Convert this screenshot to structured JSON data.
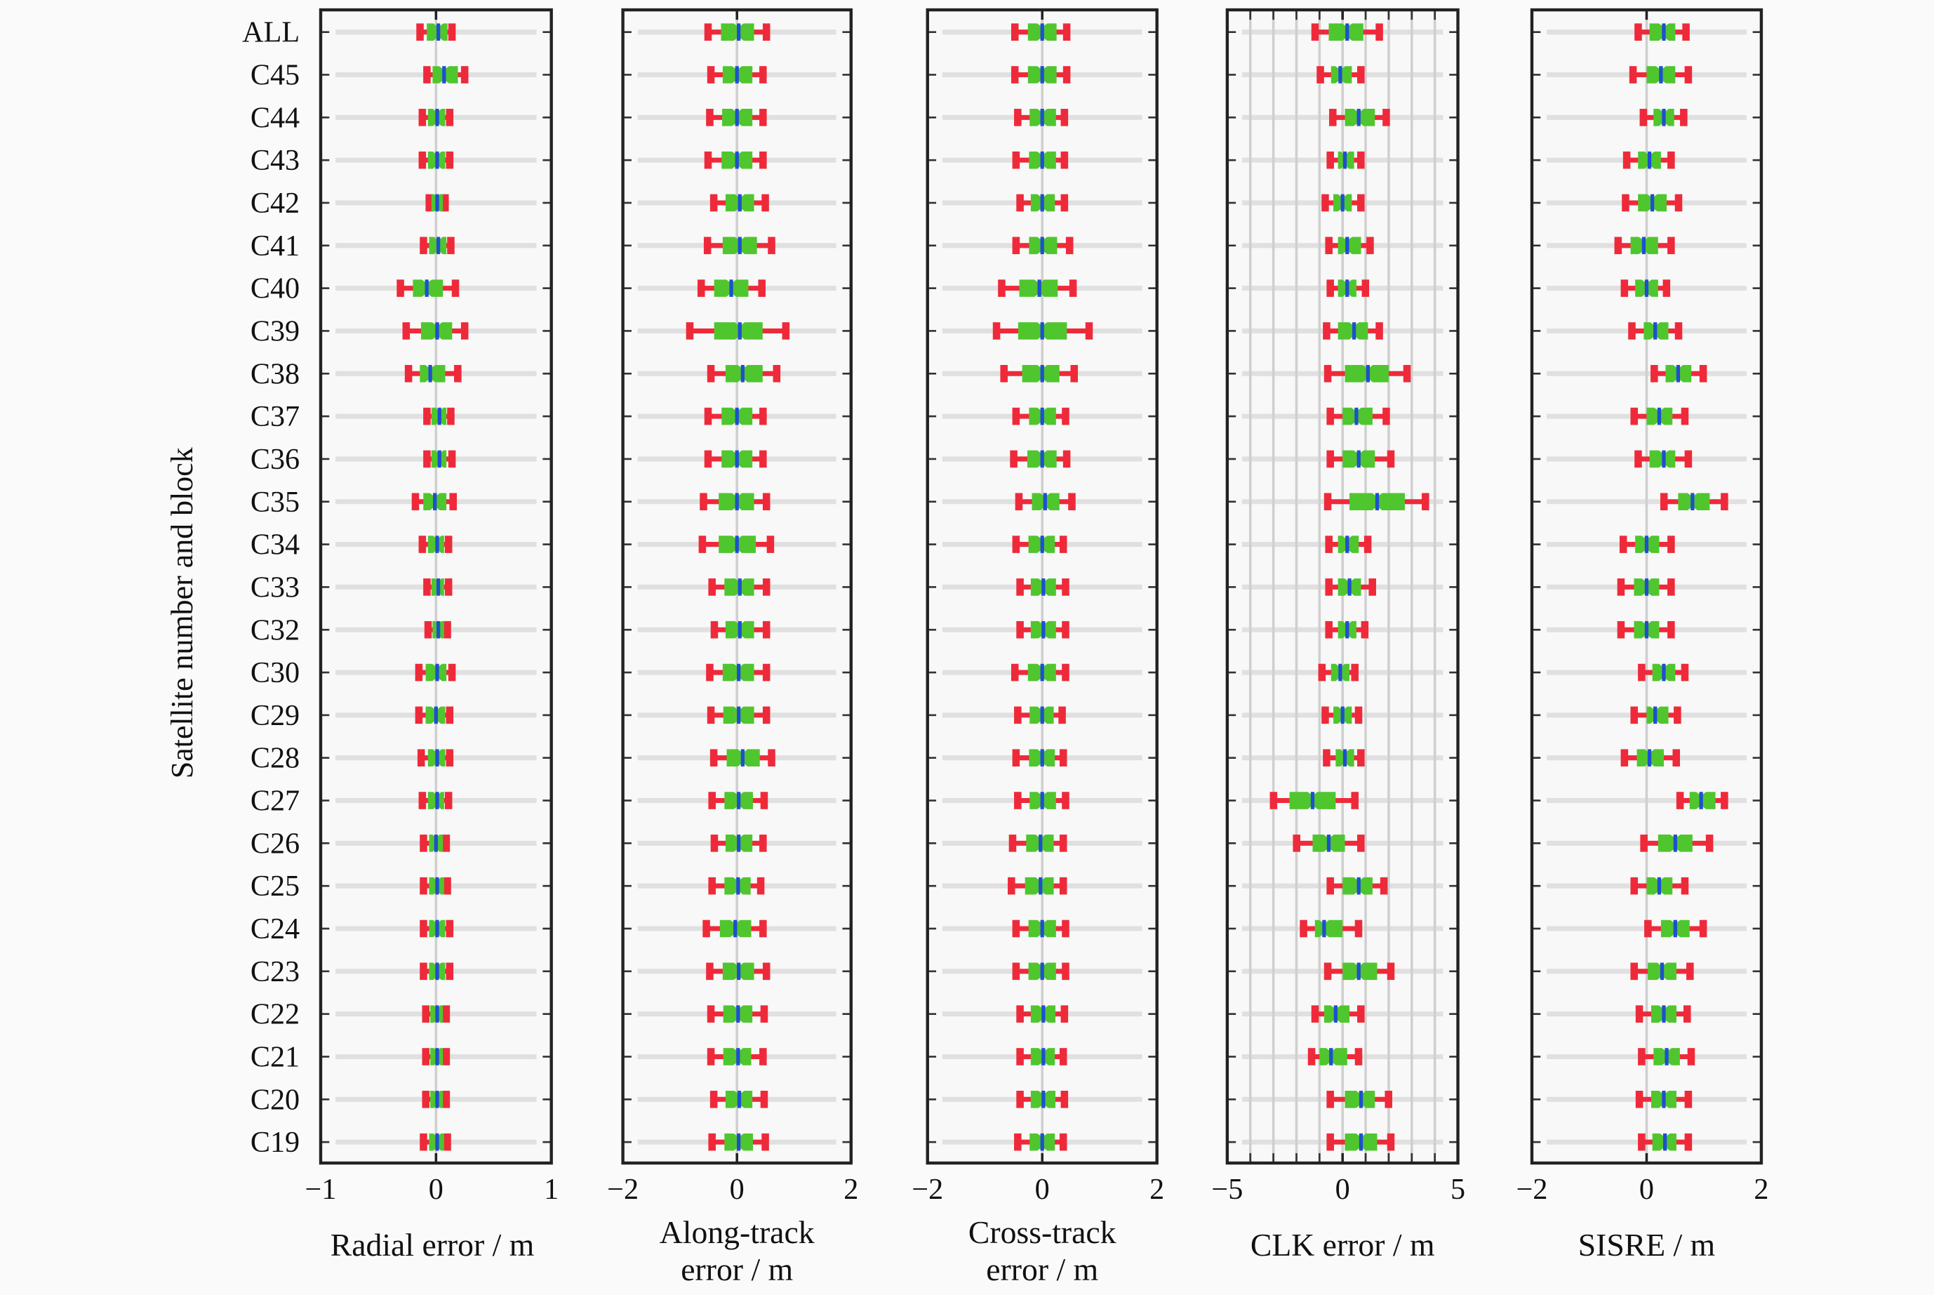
{
  "chart_data": {
    "type": "boxplot",
    "ylabel": "Satellite number and block",
    "categories": [
      "ALL",
      "C45",
      "C44",
      "C43",
      "C42",
      "C41",
      "C40",
      "C39",
      "C38",
      "C37",
      "C36",
      "C35",
      "C34",
      "C33",
      "C32",
      "C30",
      "C29",
      "C28",
      "C27",
      "C26",
      "C25",
      "C24",
      "C23",
      "C22",
      "C21",
      "C20",
      "C19"
    ],
    "value_order": [
      "whisker_min",
      "q1",
      "median",
      "q3",
      "whisker_max"
    ],
    "colors": {
      "whisker": "#ee2a3a",
      "box": "#4fc62e",
      "median": "#1f4fd0",
      "grid": "#d9d9d9"
    },
    "panels": [
      {
        "xlabel_lines": [
          "Radial error / m"
        ],
        "xlim": [
          -1,
          1
        ],
        "ticks": [
          -1,
          0,
          1
        ],
        "tick_labels": [
          "−1",
          "0",
          "1"
        ],
        "vgrid": [
          0
        ],
        "values": [
          [
            -0.16,
            -0.08,
            0.02,
            0.1,
            0.16
          ],
          [
            -0.1,
            -0.03,
            0.07,
            0.19,
            0.27
          ],
          [
            -0.14,
            -0.07,
            0.01,
            0.08,
            0.14
          ],
          [
            -0.14,
            -0.07,
            0.01,
            0.08,
            0.14
          ],
          [
            -0.08,
            -0.04,
            0.01,
            0.06,
            0.1
          ],
          [
            -0.13,
            -0.06,
            0.02,
            0.09,
            0.15
          ],
          [
            -0.33,
            -0.2,
            -0.08,
            0.06,
            0.19
          ],
          [
            -0.28,
            -0.13,
            0.01,
            0.14,
            0.27
          ],
          [
            -0.26,
            -0.14,
            -0.05,
            0.08,
            0.21
          ],
          [
            -0.1,
            -0.04,
            0.03,
            0.09,
            0.15
          ],
          [
            -0.1,
            -0.04,
            0.03,
            0.09,
            0.16
          ],
          [
            -0.2,
            -0.11,
            -0.01,
            0.09,
            0.17
          ],
          [
            -0.14,
            -0.07,
            0.01,
            0.07,
            0.13
          ],
          [
            -0.1,
            -0.04,
            0.02,
            0.07,
            0.13
          ],
          [
            -0.09,
            -0.03,
            0.02,
            0.07,
            0.12
          ],
          [
            -0.17,
            -0.09,
            0.01,
            0.09,
            0.16
          ],
          [
            -0.17,
            -0.09,
            0.0,
            0.08,
            0.14
          ],
          [
            -0.15,
            -0.07,
            0.01,
            0.08,
            0.14
          ],
          [
            -0.14,
            -0.07,
            0.01,
            0.07,
            0.13
          ],
          [
            -0.13,
            -0.06,
            0.0,
            0.06,
            0.11
          ],
          [
            -0.13,
            -0.06,
            0.01,
            0.07,
            0.12
          ],
          [
            -0.13,
            -0.06,
            0.01,
            0.08,
            0.14
          ],
          [
            -0.13,
            -0.06,
            0.01,
            0.08,
            0.14
          ],
          [
            -0.11,
            -0.05,
            0.01,
            0.06,
            0.11
          ],
          [
            -0.11,
            -0.05,
            0.01,
            0.06,
            0.11
          ],
          [
            -0.11,
            -0.05,
            0.01,
            0.06,
            0.11
          ],
          [
            -0.13,
            -0.06,
            0.01,
            0.07,
            0.12
          ]
        ]
      },
      {
        "xlabel_lines": [
          "Along-track",
          "error / m"
        ],
        "xlim": [
          -2,
          2
        ],
        "ticks": [
          -2,
          0,
          2
        ],
        "tick_labels": [
          "−2",
          "0",
          "2"
        ],
        "vgrid": [
          0
        ],
        "values": [
          [
            -0.55,
            -0.28,
            0.03,
            0.3,
            0.56
          ],
          [
            -0.5,
            -0.25,
            0.0,
            0.27,
            0.5
          ],
          [
            -0.52,
            -0.26,
            0.0,
            0.27,
            0.5
          ],
          [
            -0.55,
            -0.27,
            0.0,
            0.27,
            0.5
          ],
          [
            -0.45,
            -0.2,
            0.05,
            0.3,
            0.54
          ],
          [
            -0.56,
            -0.25,
            0.05,
            0.35,
            0.65
          ],
          [
            -0.67,
            -0.4,
            -0.1,
            0.2,
            0.48
          ],
          [
            -0.87,
            -0.4,
            0.05,
            0.45,
            0.9
          ],
          [
            -0.5,
            -0.2,
            0.1,
            0.45,
            0.74
          ],
          [
            -0.55,
            -0.27,
            0.0,
            0.27,
            0.5
          ],
          [
            -0.55,
            -0.27,
            0.0,
            0.27,
            0.5
          ],
          [
            -0.63,
            -0.32,
            0.0,
            0.3,
            0.56
          ],
          [
            -0.65,
            -0.32,
            0.0,
            0.33,
            0.63
          ],
          [
            -0.48,
            -0.22,
            0.05,
            0.3,
            0.56
          ],
          [
            -0.44,
            -0.2,
            0.05,
            0.3,
            0.56
          ],
          [
            -0.52,
            -0.25,
            0.03,
            0.3,
            0.56
          ],
          [
            -0.5,
            -0.24,
            0.03,
            0.3,
            0.56
          ],
          [
            -0.45,
            -0.18,
            0.1,
            0.4,
            0.65
          ],
          [
            -0.48,
            -0.22,
            0.03,
            0.28,
            0.52
          ],
          [
            -0.44,
            -0.2,
            0.03,
            0.27,
            0.5
          ],
          [
            -0.48,
            -0.22,
            0.02,
            0.24,
            0.46
          ],
          [
            -0.58,
            -0.3,
            -0.03,
            0.25,
            0.5
          ],
          [
            -0.52,
            -0.25,
            0.03,
            0.3,
            0.56
          ],
          [
            -0.5,
            -0.24,
            0.02,
            0.27,
            0.52
          ],
          [
            -0.5,
            -0.24,
            0.02,
            0.25,
            0.5
          ],
          [
            -0.45,
            -0.2,
            0.04,
            0.27,
            0.52
          ],
          [
            -0.48,
            -0.22,
            0.03,
            0.28,
            0.54
          ]
        ]
      },
      {
        "xlabel_lines": [
          "Cross-track",
          "error / m"
        ],
        "xlim": [
          -2,
          2
        ],
        "ticks": [
          -2,
          0,
          2
        ],
        "tick_labels": [
          "−2",
          "0",
          "2"
        ],
        "vgrid": [
          0
        ],
        "values": [
          [
            -0.52,
            -0.25,
            0.0,
            0.25,
            0.47
          ],
          [
            -0.52,
            -0.25,
            0.0,
            0.25,
            0.47
          ],
          [
            -0.47,
            -0.22,
            0.0,
            0.24,
            0.43
          ],
          [
            -0.5,
            -0.23,
            0.0,
            0.24,
            0.43
          ],
          [
            -0.43,
            -0.2,
            0.0,
            0.22,
            0.43
          ],
          [
            -0.5,
            -0.23,
            0.0,
            0.26,
            0.52
          ],
          [
            -0.75,
            -0.4,
            -0.05,
            0.27,
            0.58
          ],
          [
            -0.84,
            -0.42,
            0.0,
            0.43,
            0.86
          ],
          [
            -0.71,
            -0.35,
            0.0,
            0.3,
            0.6
          ],
          [
            -0.5,
            -0.23,
            0.0,
            0.24,
            0.45
          ],
          [
            -0.54,
            -0.26,
            0.0,
            0.25,
            0.47
          ],
          [
            -0.45,
            -0.18,
            0.05,
            0.3,
            0.56
          ],
          [
            -0.5,
            -0.24,
            0.0,
            0.22,
            0.41
          ],
          [
            -0.43,
            -0.2,
            0.02,
            0.24,
            0.45
          ],
          [
            -0.43,
            -0.2,
            0.02,
            0.24,
            0.45
          ],
          [
            -0.52,
            -0.25,
            0.0,
            0.24,
            0.45
          ],
          [
            -0.47,
            -0.22,
            0.0,
            0.2,
            0.39
          ],
          [
            -0.5,
            -0.23,
            0.0,
            0.22,
            0.41
          ],
          [
            -0.47,
            -0.22,
            0.0,
            0.24,
            0.45
          ],
          [
            -0.56,
            -0.28,
            -0.03,
            0.2,
            0.41
          ],
          [
            -0.58,
            -0.3,
            -0.03,
            0.2,
            0.41
          ],
          [
            -0.5,
            -0.24,
            0.0,
            0.24,
            0.45
          ],
          [
            -0.5,
            -0.24,
            0.0,
            0.24,
            0.45
          ],
          [
            -0.43,
            -0.2,
            0.02,
            0.23,
            0.43
          ],
          [
            -0.43,
            -0.2,
            0.02,
            0.22,
            0.41
          ],
          [
            -0.43,
            -0.2,
            0.02,
            0.23,
            0.43
          ],
          [
            -0.47,
            -0.22,
            0.0,
            0.22,
            0.41
          ]
        ]
      },
      {
        "xlabel_lines": [
          "CLK error / m"
        ],
        "xlim": [
          -5,
          5
        ],
        "ticks": [
          -5,
          0,
          5
        ],
        "tick_labels": [
          "−5",
          "0",
          "5"
        ],
        "vgrid": [
          -4,
          -3,
          -2,
          -1,
          0,
          1,
          2,
          3,
          4
        ],
        "values": [
          [
            -1.3,
            -0.6,
            0.2,
            0.9,
            1.7
          ],
          [
            -1.07,
            -0.5,
            -0.1,
            0.4,
            0.9
          ],
          [
            -0.53,
            0.1,
            0.7,
            1.4,
            2.0
          ],
          [
            -0.64,
            -0.2,
            0.1,
            0.5,
            0.9
          ],
          [
            -0.86,
            -0.4,
            0.0,
            0.4,
            0.9
          ],
          [
            -0.7,
            -0.2,
            0.2,
            0.8,
            1.3
          ],
          [
            -0.64,
            -0.2,
            0.2,
            0.6,
            1.1
          ],
          [
            -0.8,
            -0.2,
            0.5,
            1.1,
            1.7
          ],
          [
            -0.75,
            0.1,
            1.1,
            2.0,
            2.9
          ],
          [
            -0.64,
            0.0,
            0.6,
            1.3,
            2.0
          ],
          [
            -0.64,
            0.0,
            0.7,
            1.4,
            2.2
          ],
          [
            -0.75,
            0.3,
            1.5,
            2.7,
            3.7
          ],
          [
            -0.7,
            -0.2,
            0.2,
            0.7,
            1.2
          ],
          [
            -0.7,
            -0.2,
            0.3,
            0.8,
            1.4
          ],
          [
            -0.7,
            -0.2,
            0.2,
            0.6,
            1.07
          ],
          [
            -1.0,
            -0.5,
            -0.1,
            0.3,
            0.64
          ],
          [
            -0.86,
            -0.4,
            0.0,
            0.4,
            0.8
          ],
          [
            -0.8,
            -0.3,
            0.1,
            0.5,
            0.9
          ],
          [
            -3.1,
            -2.3,
            -1.3,
            -0.3,
            0.64
          ],
          [
            -2.1,
            -1.3,
            -0.6,
            0.1,
            0.9
          ],
          [
            -0.64,
            0.0,
            0.7,
            1.3,
            1.9
          ],
          [
            -1.8,
            -1.2,
            -0.8,
            0.0,
            0.8
          ],
          [
            -0.75,
            0.0,
            0.7,
            1.5,
            2.2
          ],
          [
            -1.3,
            -0.8,
            -0.3,
            0.3,
            0.9
          ],
          [
            -1.45,
            -1.0,
            -0.5,
            0.2,
            0.8
          ],
          [
            -0.64,
            0.1,
            0.8,
            1.4,
            2.1
          ],
          [
            -0.64,
            0.1,
            0.8,
            1.5,
            2.2
          ]
        ]
      },
      {
        "xlabel_lines": [
          "SISRE / m"
        ],
        "xlim": [
          -2,
          2
        ],
        "ticks": [
          -2,
          0,
          2
        ],
        "tick_labels": [
          "−2",
          "0",
          "2"
        ],
        "vgrid": [
          0
        ],
        "values": [
          [
            -0.19,
            0.05,
            0.3,
            0.5,
            0.73
          ],
          [
            -0.28,
            0.0,
            0.25,
            0.5,
            0.77
          ],
          [
            -0.1,
            0.12,
            0.3,
            0.48,
            0.69
          ],
          [
            -0.39,
            -0.15,
            0.05,
            0.25,
            0.47
          ],
          [
            -0.41,
            -0.15,
            0.1,
            0.35,
            0.6
          ],
          [
            -0.54,
            -0.28,
            -0.05,
            0.2,
            0.47
          ],
          [
            -0.43,
            -0.2,
            0.0,
            0.2,
            0.39
          ],
          [
            -0.3,
            -0.05,
            0.15,
            0.38,
            0.6
          ],
          [
            0.09,
            0.33,
            0.55,
            0.78,
            1.03
          ],
          [
            -0.26,
            0.0,
            0.22,
            0.45,
            0.71
          ],
          [
            -0.19,
            0.05,
            0.3,
            0.5,
            0.77
          ],
          [
            0.26,
            0.55,
            0.8,
            1.1,
            1.4
          ],
          [
            -0.45,
            -0.2,
            0.0,
            0.22,
            0.47
          ],
          [
            -0.49,
            -0.22,
            0.0,
            0.22,
            0.47
          ],
          [
            -0.49,
            -0.22,
            0.0,
            0.22,
            0.47
          ],
          [
            -0.13,
            0.1,
            0.3,
            0.5,
            0.71
          ],
          [
            -0.26,
            0.0,
            0.15,
            0.38,
            0.58
          ],
          [
            -0.43,
            -0.17,
            0.05,
            0.3,
            0.56
          ],
          [
            0.54,
            0.75,
            0.95,
            1.2,
            1.4
          ],
          [
            -0.09,
            0.2,
            0.5,
            0.8,
            1.14
          ],
          [
            -0.26,
            0.0,
            0.22,
            0.45,
            0.71
          ],
          [
            -0.02,
            0.25,
            0.5,
            0.75,
            1.03
          ],
          [
            -0.26,
            0.02,
            0.27,
            0.52,
            0.8
          ],
          [
            -0.17,
            0.08,
            0.3,
            0.52,
            0.75
          ],
          [
            -0.13,
            0.12,
            0.35,
            0.58,
            0.82
          ],
          [
            -0.17,
            0.08,
            0.3,
            0.52,
            0.77
          ],
          [
            -0.13,
            0.1,
            0.32,
            0.52,
            0.77
          ]
        ]
      }
    ]
  }
}
